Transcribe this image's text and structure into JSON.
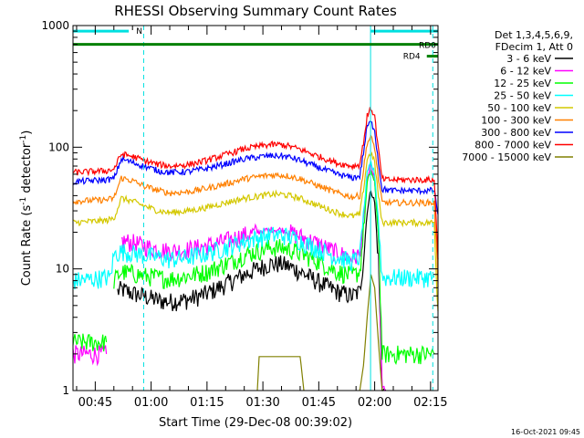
{
  "chart_data": {
    "type": "line",
    "title": "RHESSI Observing Summary Count Rates",
    "xlabel": "Start Time (29-Dec-08 00:39:02)",
    "ylabel_main": "Count Rate (s",
    "ylabel_sup1": "-1",
    "ylabel_mid": " detector",
    "ylabel_sup2": "-1",
    "ylabel_end": ")",
    "ylabel_full": "Count Rate (s^-1 detector^-1)",
    "yscale": "log",
    "ylim": [
      1,
      1000
    ],
    "xlim": [
      39.03,
      137.0
    ],
    "x_unit": "minutes after 00:00 UT, 29-Dec-08",
    "yticks": [
      {
        "value": 1,
        "label": "1"
      },
      {
        "value": 10,
        "label": "10"
      },
      {
        "value": 100,
        "label": "100"
      },
      {
        "value": 1000,
        "label": "1000"
      }
    ],
    "xticks": [
      {
        "value": 45,
        "label": "00:45"
      },
      {
        "value": 60,
        "label": "01:00"
      },
      {
        "value": 75,
        "label": "01:15"
      },
      {
        "value": 90,
        "label": "01:30"
      },
      {
        "value": 105,
        "label": "01:45"
      },
      {
        "value": 120,
        "label": "02:00"
      },
      {
        "value": 135,
        "label": "02:15"
      }
    ],
    "legend": {
      "placement": "right",
      "header": [
        "Det 1,3,4,5,6,9,",
        "FDecim 1, Att 0"
      ]
    },
    "series": [
      {
        "name": "3 - 6 keV",
        "color": "#000000",
        "x": [
          39.03,
          50,
          51,
          52,
          55,
          58,
          62,
          65,
          70,
          75,
          80,
          85,
          90,
          92,
          95,
          97,
          100,
          105,
          110,
          114,
          116,
          117,
          118,
          119,
          120,
          121,
          122,
          123,
          124,
          136,
          137
        ],
        "y": [
          null,
          null,
          6.5,
          6.8,
          6.3,
          6.0,
          5.5,
          5.4,
          5.6,
          6.3,
          7.5,
          9.0,
          10.5,
          11.0,
          11.0,
          10.5,
          9.5,
          7.8,
          6.5,
          6.0,
          6.5,
          12,
          30,
          45,
          35,
          12,
          1.0,
          1.0,
          null,
          null,
          null
        ]
      },
      {
        "name": "6 - 12 keV",
        "color": "#ff00ff",
        "x": [
          39.03,
          40,
          48,
          49,
          50,
          52,
          55,
          58,
          62,
          65,
          70,
          75,
          80,
          85,
          90,
          92,
          95,
          97,
          100,
          105,
          110,
          114,
          116,
          117,
          118,
          119,
          120,
          121,
          122,
          123,
          124,
          136,
          137
        ],
        "y": [
          2.0,
          2.0,
          2.0,
          null,
          null,
          17,
          16.5,
          15.5,
          14.5,
          14,
          14.5,
          15.5,
          17,
          19,
          20.5,
          21,
          21,
          20,
          18.5,
          16,
          13.5,
          12.5,
          13,
          25,
          55,
          70,
          55,
          18,
          1.0,
          1.0,
          null,
          null,
          null
        ]
      },
      {
        "name": "12 - 25 keV",
        "color": "#00ff00",
        "x": [
          39.03,
          48,
          49,
          50,
          52,
          55,
          58,
          62,
          65,
          70,
          75,
          80,
          85,
          90,
          92,
          95,
          97,
          100,
          105,
          110,
          114,
          116,
          117,
          118,
          119,
          120,
          121,
          122,
          123,
          124,
          136,
          137
        ],
        "y": [
          2.5,
          2.5,
          null,
          8,
          9.5,
          9.2,
          8.8,
          8.5,
          8.3,
          8.8,
          9.5,
          11,
          13,
          14.5,
          15,
          15,
          14.5,
          13.5,
          11.5,
          9.5,
          8.8,
          9.5,
          20,
          50,
          65,
          50,
          20,
          2.0,
          2.0,
          2.0,
          2.0,
          null
        ]
      },
      {
        "name": "25 - 50 keV",
        "color": "#00ffff",
        "x": [
          39.03,
          48,
          49,
          50,
          52,
          55,
          58,
          62,
          65,
          70,
          75,
          80,
          85,
          90,
          92,
          95,
          97,
          100,
          105,
          110,
          114,
          116,
          117,
          118,
          119,
          120,
          121,
          122,
          123,
          124,
          130,
          136,
          137
        ],
        "y": [
          8,
          8.5,
          8.5,
          13,
          14,
          13.5,
          13,
          12.5,
          12,
          12.5,
          13.5,
          15,
          17,
          18.5,
          19,
          19,
          18.5,
          17,
          14.5,
          12.5,
          11.5,
          12.5,
          28,
          60,
          75,
          60,
          25,
          8.5,
          8.5,
          8.5,
          8.5,
          8.5,
          null
        ]
      },
      {
        "name": "50 - 100 keV",
        "color": "#d4c800",
        "x": [
          39.03,
          48,
          50,
          52,
          55,
          58,
          62,
          65,
          70,
          75,
          80,
          85,
          90,
          92,
          95,
          97,
          100,
          105,
          110,
          114,
          116,
          117,
          118,
          119,
          120,
          121,
          122,
          123,
          124,
          130,
          136,
          137
        ],
        "y": [
          24,
          25,
          26,
          38,
          36,
          33,
          30,
          29,
          30,
          32,
          35,
          38,
          40,
          41,
          41,
          40,
          38,
          33,
          29,
          27,
          28,
          45,
          80,
          90,
          75,
          40,
          24,
          24,
          24,
          24,
          24,
          4.5
        ]
      },
      {
        "name": "100 - 300 keV",
        "color": "#ff8000",
        "x": [
          39.03,
          48,
          50,
          52,
          55,
          58,
          62,
          65,
          70,
          75,
          80,
          85,
          90,
          92,
          95,
          97,
          100,
          105,
          110,
          114,
          116,
          117,
          118,
          119,
          120,
          121,
          122,
          123,
          124,
          130,
          136,
          137
        ],
        "y": [
          36,
          37,
          38,
          56,
          53,
          48,
          44,
          42,
          43,
          46,
          50,
          55,
          58,
          59,
          59,
          58,
          55,
          48,
          42,
          39,
          40,
          65,
          110,
          120,
          100,
          55,
          35,
          35,
          35,
          35,
          35,
          7
        ]
      },
      {
        "name": "300 - 800 keV",
        "color": "#0000ff",
        "x": [
          39.03,
          48,
          50,
          52,
          55,
          58,
          62,
          65,
          70,
          75,
          80,
          85,
          90,
          92,
          95,
          97,
          100,
          105,
          110,
          114,
          116,
          117,
          118,
          119,
          120,
          121,
          122,
          123,
          124,
          130,
          136,
          137
        ],
        "y": [
          52,
          54,
          55,
          80,
          75,
          70,
          64,
          62,
          63,
          67,
          73,
          80,
          84,
          85,
          85,
          83,
          78,
          68,
          60,
          56,
          58,
          90,
          150,
          160,
          140,
          75,
          45,
          45,
          44,
          44,
          44,
          28
        ]
      },
      {
        "name": "800 - 7000 keV",
        "color": "#ff0000",
        "x": [
          39.03,
          48,
          50,
          52,
          55,
          58,
          62,
          65,
          70,
          75,
          80,
          85,
          90,
          92,
          95,
          97,
          100,
          105,
          110,
          114,
          116,
          117,
          118,
          119,
          120,
          121,
          122,
          123,
          124,
          130,
          136,
          137
        ],
        "y": [
          62,
          64,
          66,
          88,
          84,
          78,
          72,
          70,
          72,
          78,
          87,
          97,
          103,
          105,
          105,
          102,
          96,
          84,
          74,
          70,
          72,
          110,
          180,
          210,
          180,
          95,
          55,
          54,
          54,
          54,
          54,
          12
        ]
      },
      {
        "name": "7000 - 15000 keV",
        "color": "#808000",
        "x": [
          39.03,
          88,
          88.5,
          89,
          100,
          101,
          101.5,
          115,
          116,
          117,
          118,
          119,
          120,
          121,
          122,
          123,
          124,
          137
        ],
        "y": [
          null,
          null,
          1.0,
          1.9,
          1.9,
          1.0,
          null,
          null,
          1.0,
          1.6,
          4,
          9,
          7,
          2.5,
          1.0,
          null,
          null,
          null
        ]
      }
    ],
    "annotations": [
      {
        "label": "N",
        "color": "#00e0e0",
        "x_start": 39.03,
        "x_end": 58.0,
        "y": 900
      },
      {
        "label": "RD0",
        "color": "#008000",
        "x_start": 39.03,
        "x_end": 137.0,
        "y": 700
      },
      {
        "label": "RD4",
        "color": "#008000",
        "x_start": 134.0,
        "x_end": 137.0,
        "y": 560
      }
    ],
    "vertical_markers": [
      {
        "x": 58.0,
        "color": "#00e0e0",
        "style": "dashed"
      },
      {
        "x": 118.9,
        "color": "#00e0e0",
        "style": "solid"
      },
      {
        "x": 135.6,
        "color": "#00e0e0",
        "style": "dashed"
      },
      {
        "x": 39.03,
        "color": "#00e0e0",
        "style": "solid"
      }
    ],
    "grid": false
  },
  "footer": {
    "date": "16-Oct-2021 09:45"
  }
}
